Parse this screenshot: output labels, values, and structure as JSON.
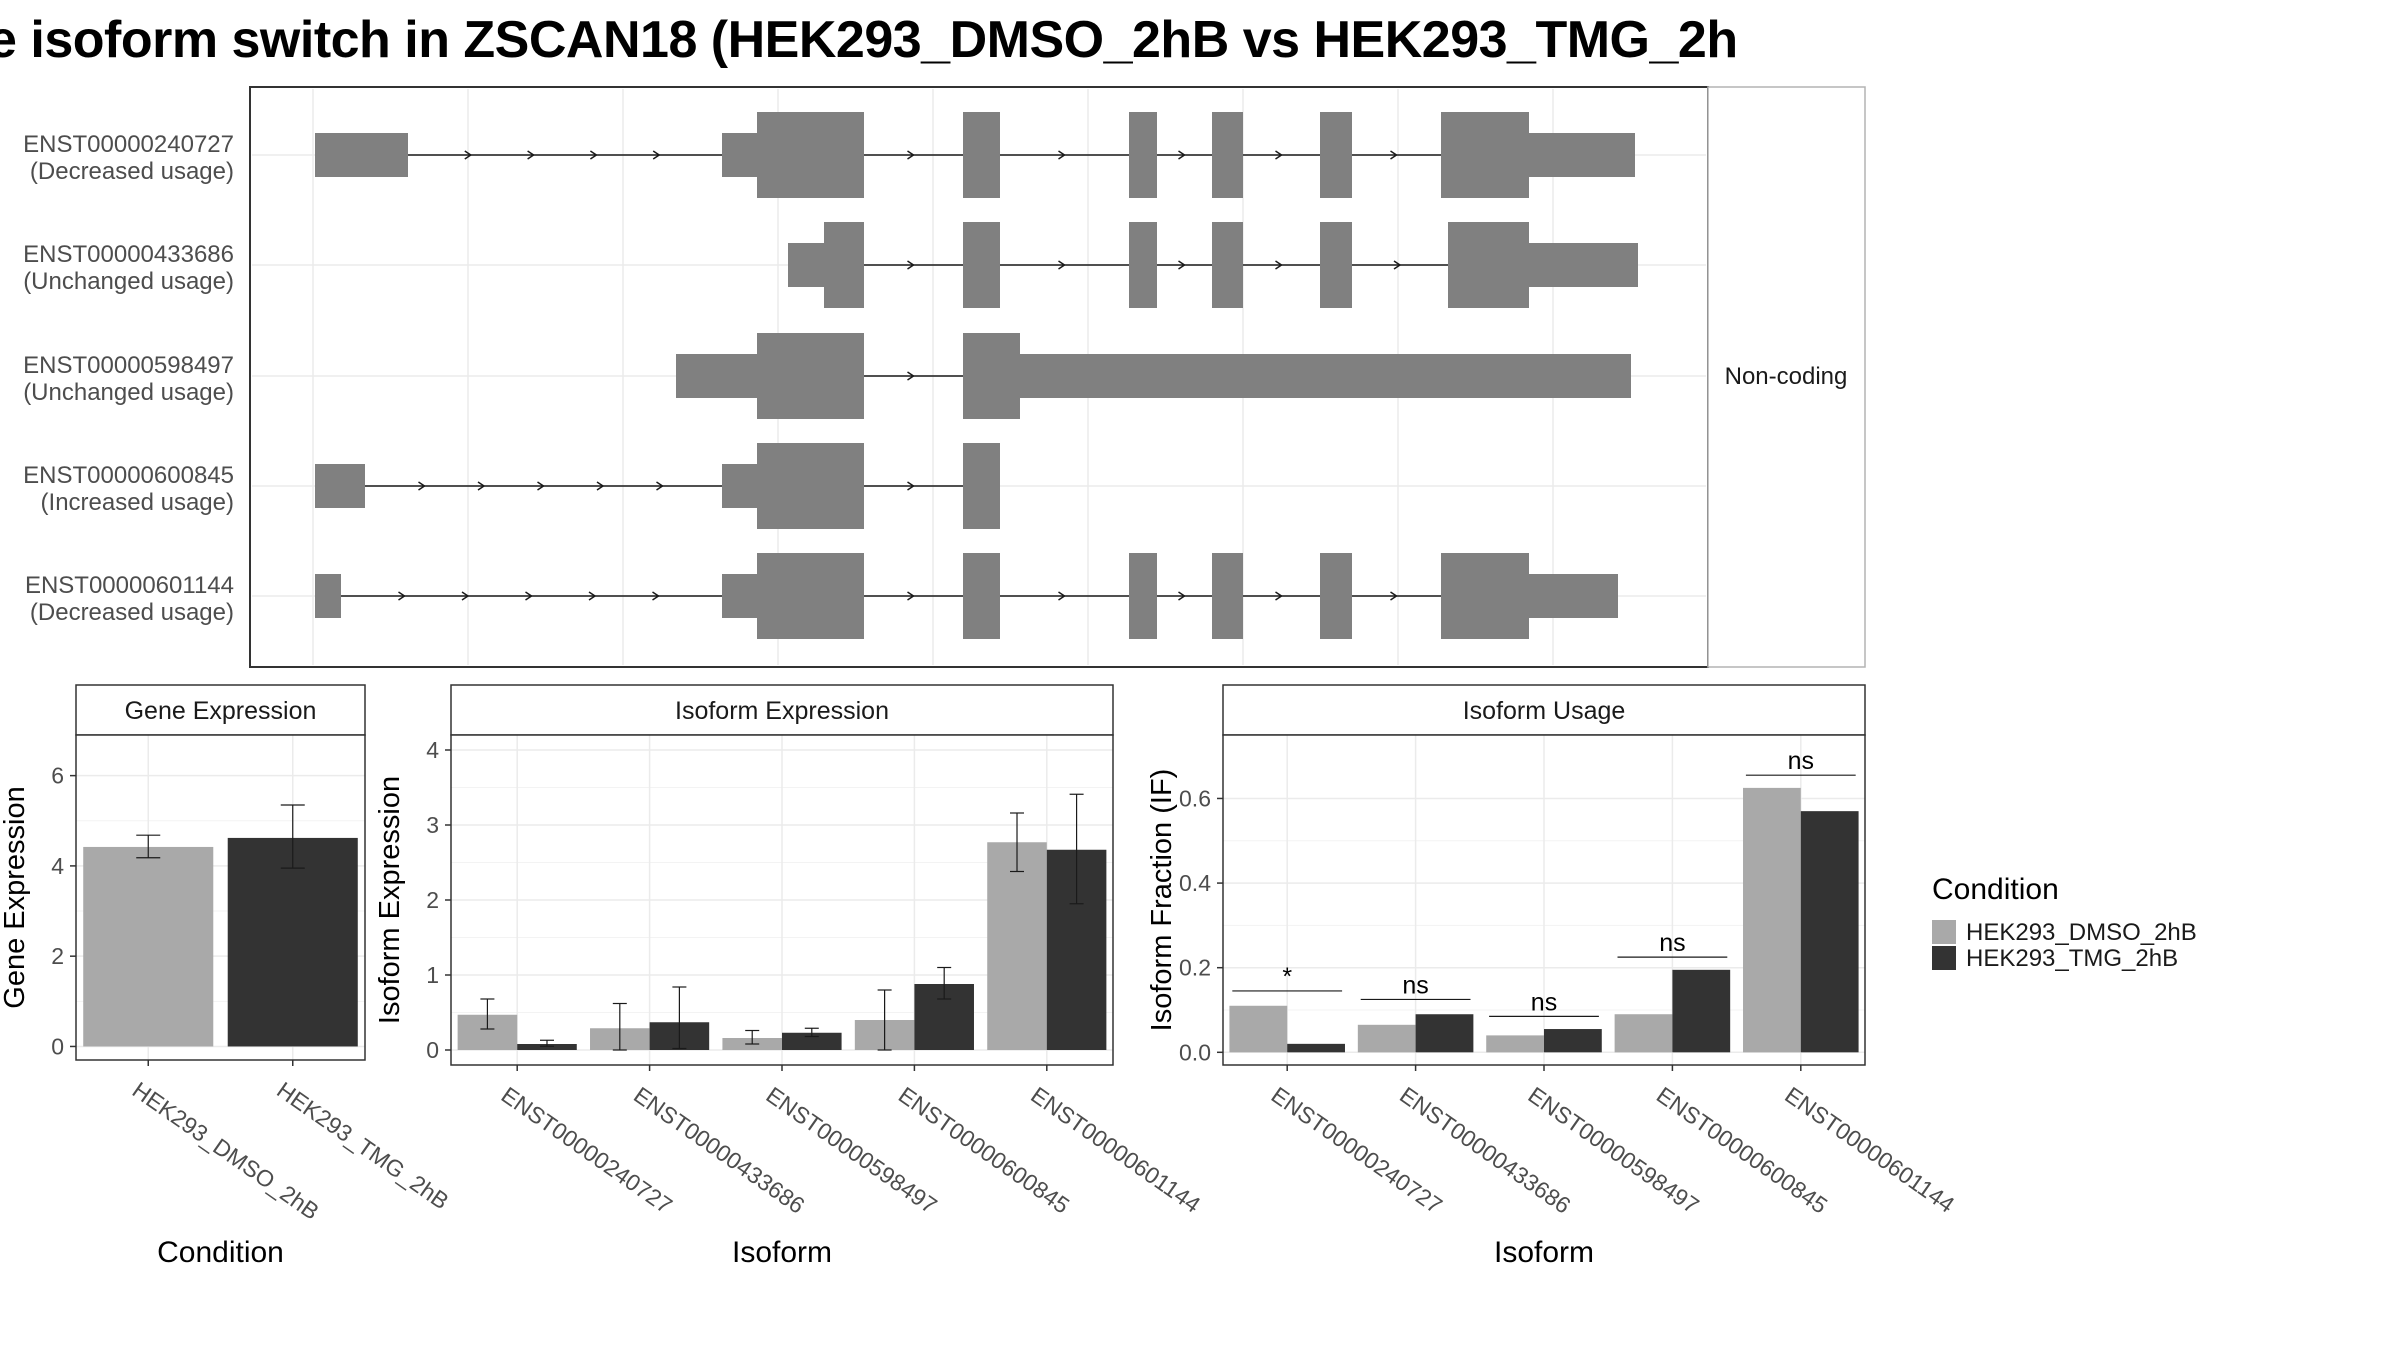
{
  "title": "e isoform switch in ZSCAN18 (HEK293_DMSO_2hB vs HEK293_TMG_2h",
  "colors": {
    "dmso": "#a9a9a9",
    "tmg": "#333333",
    "exon": "#808080",
    "panel_border": "#333333",
    "strip_bg": "#ffffff",
    "grid": "#ebebeb"
  },
  "chart_data": [
    {
      "type": "table",
      "name": "isoform-structures",
      "facet_label": "Non-coding",
      "isoforms": [
        {
          "id": "ENST00000240727",
          "usage": "(Decreased usage)"
        },
        {
          "id": "ENST00000433686",
          "usage": "(Unchanged usage)"
        },
        {
          "id": "ENST00000598497",
          "usage": "(Unchanged usage)"
        },
        {
          "id": "ENST00000600845",
          "usage": "(Increased usage)"
        },
        {
          "id": "ENST00000601144",
          "usage": "(Decreased usage)"
        }
      ]
    },
    {
      "type": "bar",
      "title": "Gene Expression",
      "xlabel": "Condition",
      "ylabel": "Gene Expression",
      "ylim": [
        -0.3,
        6.9
      ],
      "yticks": [
        "0",
        "2",
        "4",
        "6"
      ],
      "categories": [
        "HEK293_DMSO_2hB",
        "HEK293_TMG_2hB"
      ],
      "values": [
        4.42,
        4.62
      ],
      "err_low": [
        4.18,
        3.95
      ],
      "err_high": [
        4.68,
        5.35
      ]
    },
    {
      "type": "bar",
      "title": "Isoform Expression",
      "xlabel": "Isoform",
      "ylabel": "Isoform Expression",
      "ylim": [
        -0.2,
        4.2
      ],
      "yticks": [
        "0",
        "1",
        "2",
        "3",
        "4"
      ],
      "categories": [
        "ENST00000240727",
        "ENST00000433686",
        "ENST00000598497",
        "ENST00000600845",
        "ENST00000601144"
      ],
      "series": [
        {
          "name": "HEK293_DMSO_2hB",
          "values": [
            0.47,
            0.29,
            0.16,
            0.4,
            2.77
          ],
          "err_low": [
            0.28,
            0.0,
            0.08,
            0.0,
            2.38
          ],
          "err_high": [
            0.68,
            0.62,
            0.26,
            0.8,
            3.16
          ]
        },
        {
          "name": "HEK293_TMG_2hB",
          "values": [
            0.08,
            0.37,
            0.23,
            0.88,
            2.67
          ],
          "err_low": [
            0.05,
            0.02,
            0.18,
            0.68,
            1.95
          ],
          "err_high": [
            0.13,
            0.84,
            0.29,
            1.1,
            3.41
          ]
        }
      ]
    },
    {
      "type": "bar",
      "title": "Isoform Usage",
      "xlabel": "Isoform",
      "ylabel": "Isoform Fraction (IF)",
      "ylim": [
        -0.03,
        0.75
      ],
      "yticks": [
        "0.0",
        "0.2",
        "0.4",
        "0.6"
      ],
      "categories": [
        "ENST00000240727",
        "ENST00000433686",
        "ENST00000598497",
        "ENST00000600845",
        "ENST00000601144"
      ],
      "series": [
        {
          "name": "HEK293_DMSO_2hB",
          "values": [
            0.11,
            0.065,
            0.04,
            0.09,
            0.625
          ]
        },
        {
          "name": "HEK293_TMG_2hB",
          "values": [
            0.02,
            0.09,
            0.055,
            0.195,
            0.57
          ]
        }
      ],
      "significance": [
        "*",
        "ns",
        "ns",
        "ns",
        "ns"
      ],
      "sig_y": [
        0.145,
        0.125,
        0.085,
        0.225,
        0.655
      ]
    }
  ],
  "legend": {
    "title": "Condition",
    "items": [
      {
        "label": "HEK293_DMSO_2hB",
        "color": "#a9a9a9"
      },
      {
        "label": "HEK293_TMG_2hB",
        "color": "#333333"
      }
    ]
  }
}
